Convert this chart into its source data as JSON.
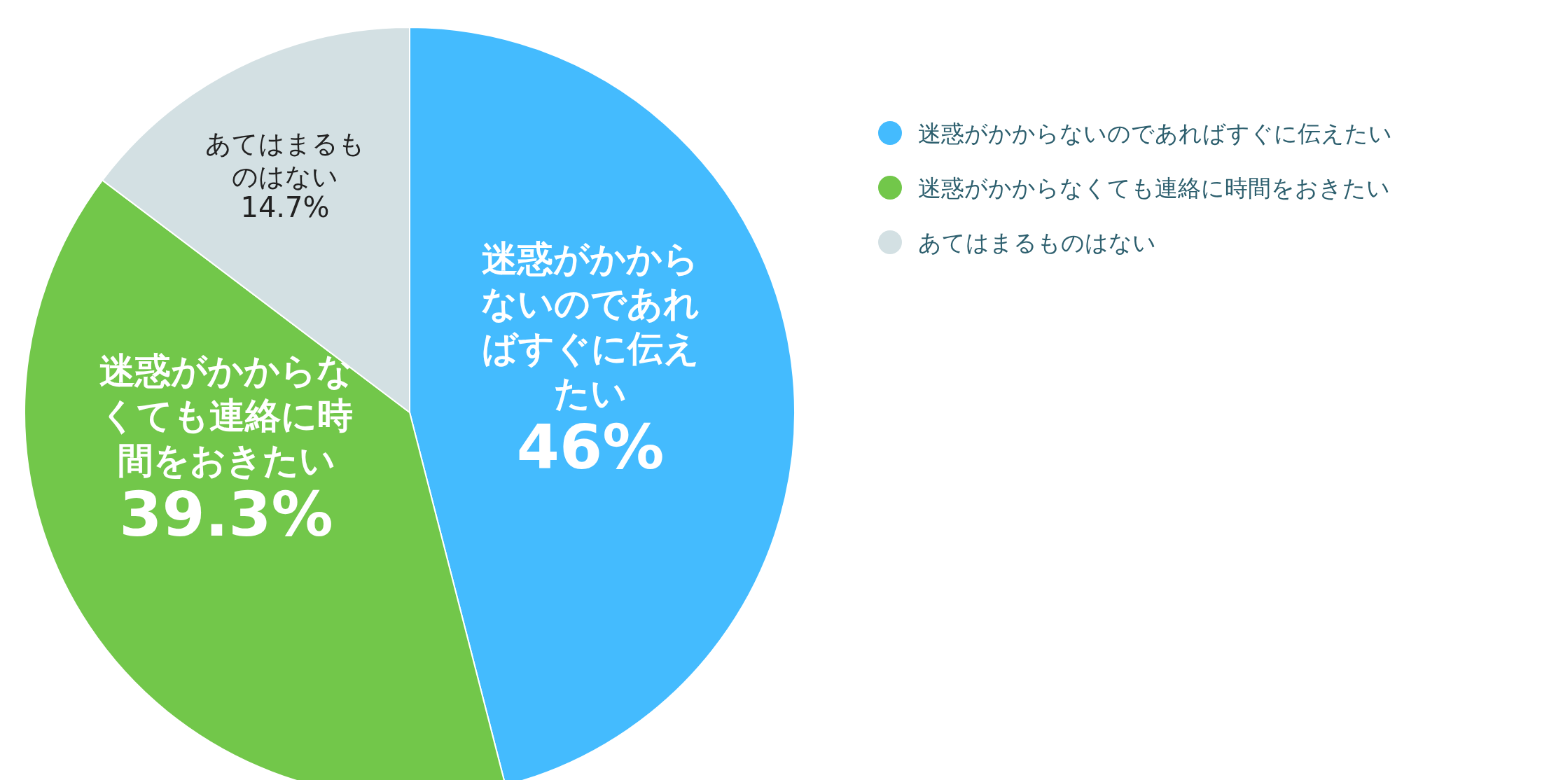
{
  "chart_data": {
    "type": "pie",
    "categories": [
      "迷惑がかからないのであればすぐに伝えたい",
      "迷惑がかからなくても連絡に時間をおきたい",
      "あてはまるものはない"
    ],
    "values": [
      46,
      39.3,
      14.7
    ],
    "colors": [
      "#44bbfe",
      "#72c74a",
      "#d3e0e3"
    ],
    "value_labels": [
      "46%",
      "39.3%",
      "14.7%"
    ],
    "legend": "right"
  }
}
